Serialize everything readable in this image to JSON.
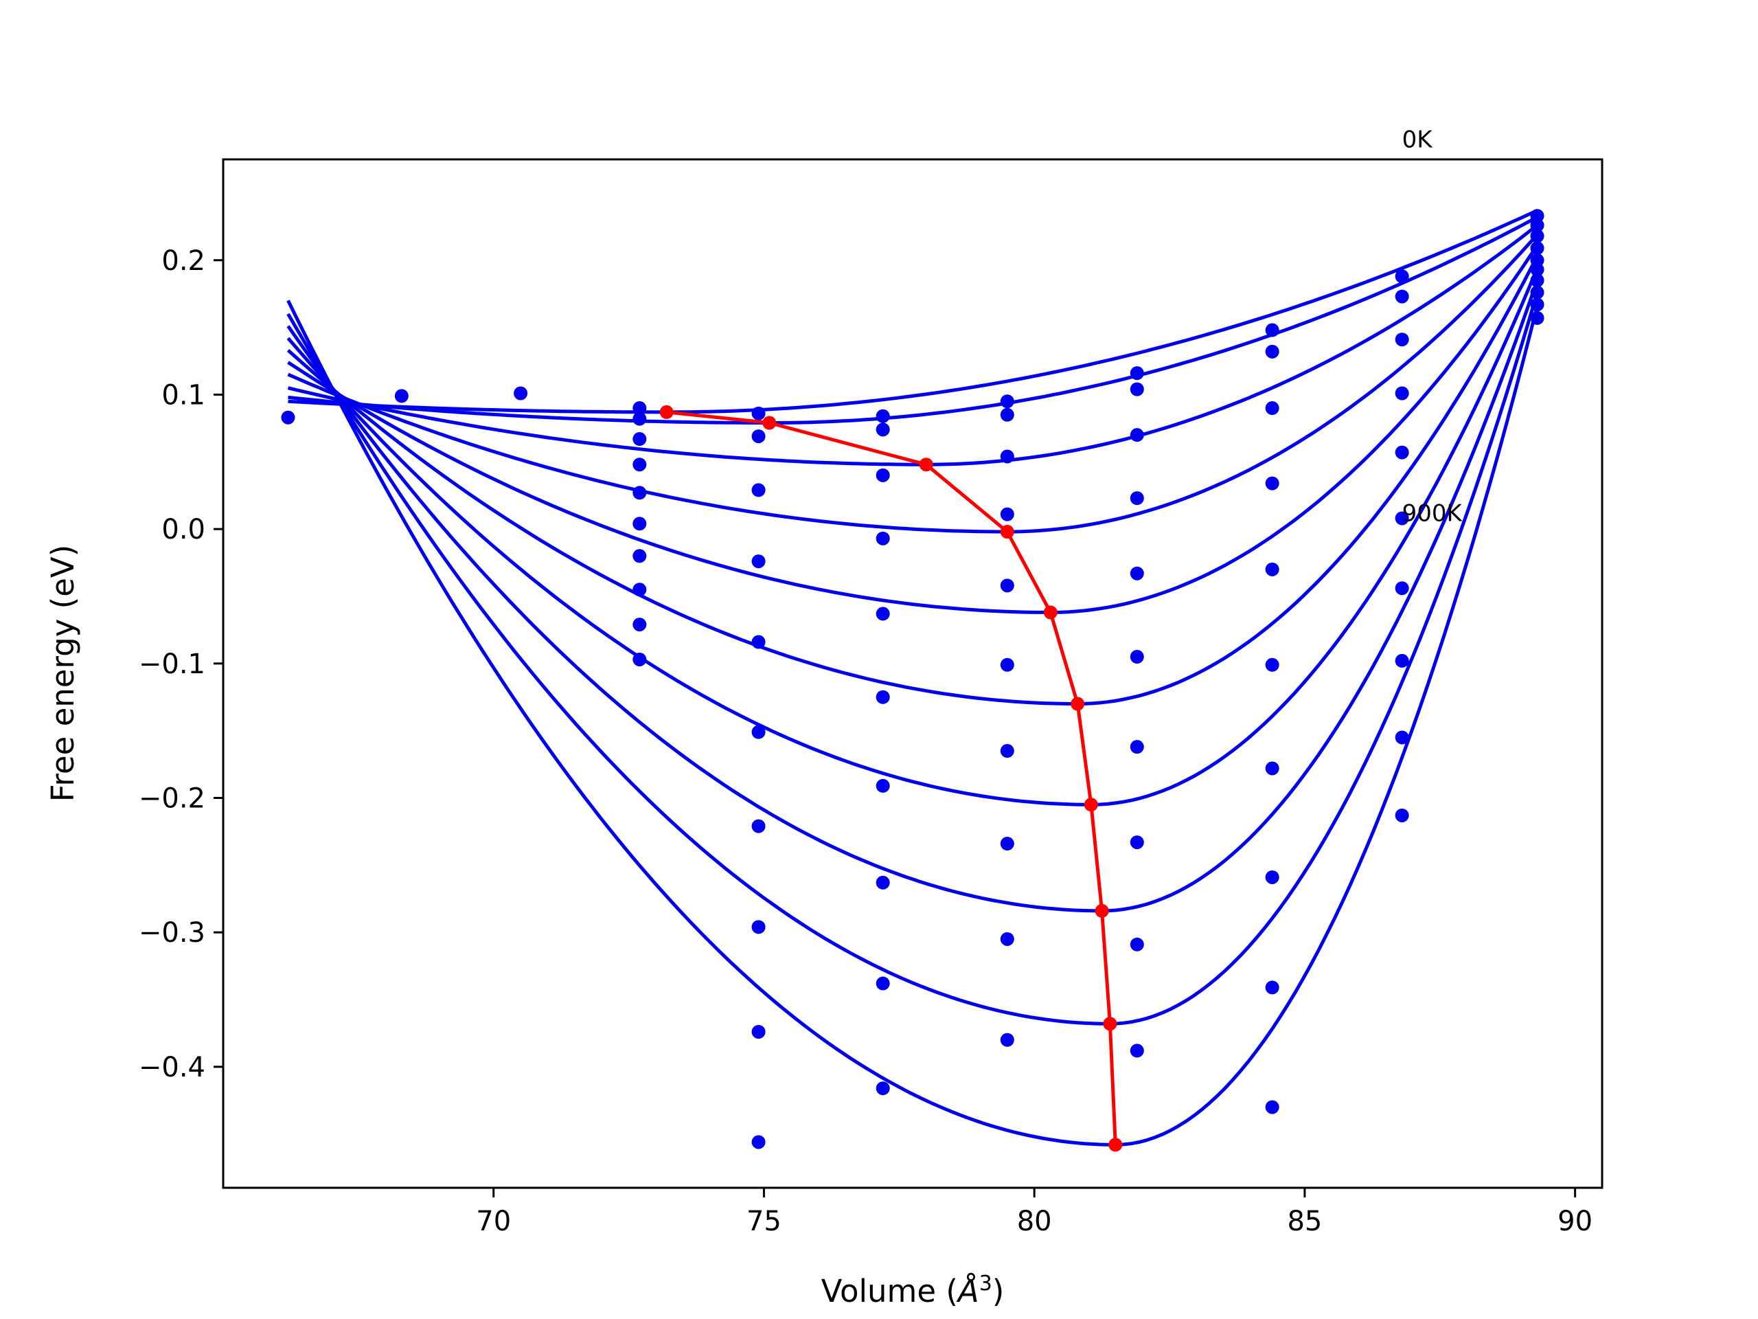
{
  "chart_data": {
    "type": "line",
    "title": "",
    "xlabel": "Volume (",
    "xlabel_unit": "Å",
    "xlabel_sup": "3",
    "xlabel_close": ")",
    "ylabel": "Free energy (eV)",
    "xlim": [
      65.0,
      90.5
    ],
    "ylim": [
      -0.49,
      0.275
    ],
    "xticks": [
      70,
      75,
      80,
      85,
      90
    ],
    "xtick_labels": [
      "70",
      "75",
      "80",
      "85",
      "90"
    ],
    "yticks": [
      -0.4,
      -0.3,
      -0.2,
      -0.1,
      0.0,
      0.1,
      0.2
    ],
    "ytick_labels": [
      "−0.4",
      "−0.3",
      "−0.2",
      "−0.1",
      "0.0",
      "0.1",
      "0.2"
    ],
    "grid": false,
    "annotations": [
      {
        "text": "0K",
        "x": 86.8,
        "y": 0.29
      },
      {
        "text": "900K",
        "x": 86.8,
        "y": 0.012
      }
    ],
    "fit_curves": [
      {
        "v0": 73.2,
        "fmin": 0.087,
        "left": 0.095,
        "right": 0.237
      },
      {
        "v0": 75.1,
        "fmin": 0.079,
        "left": 0.098,
        "right": 0.232
      },
      {
        "v0": 78.0,
        "fmin": 0.048,
        "left": 0.105,
        "right": 0.226
      },
      {
        "v0": 79.5,
        "fmin": -0.002,
        "left": 0.115,
        "right": 0.219
      },
      {
        "v0": 80.3,
        "fmin": -0.062,
        "left": 0.124,
        "right": 0.211
      },
      {
        "v0": 80.8,
        "fmin": -0.13,
        "left": 0.133,
        "right": 0.203
      },
      {
        "v0": 81.05,
        "fmin": -0.205,
        "left": 0.142,
        "right": 0.194
      },
      {
        "v0": 81.25,
        "fmin": -0.284,
        "left": 0.151,
        "right": 0.185
      },
      {
        "v0": 81.4,
        "fmin": -0.368,
        "left": 0.16,
        "right": 0.176
      },
      {
        "v0": 81.5,
        "fmin": -0.458,
        "left": 0.17,
        "right": 0.166
      }
    ],
    "fit_x_range": [
      66.2,
      89.3
    ],
    "sample_points": [
      {
        "x": 66.2,
        "y": 0.083
      },
      {
        "x": 68.3,
        "y": 0.099
      },
      {
        "x": 70.5,
        "y": 0.101
      },
      {
        "x": 72.7,
        "y": 0.09
      },
      {
        "x": 72.7,
        "y": 0.082
      },
      {
        "x": 72.7,
        "y": 0.067
      },
      {
        "x": 72.7,
        "y": 0.048
      },
      {
        "x": 72.7,
        "y": 0.027
      },
      {
        "x": 72.7,
        "y": 0.004
      },
      {
        "x": 72.7,
        "y": -0.02
      },
      {
        "x": 72.7,
        "y": -0.045
      },
      {
        "x": 72.7,
        "y": -0.071
      },
      {
        "x": 72.7,
        "y": -0.097
      },
      {
        "x": 74.9,
        "y": 0.086
      },
      {
        "x": 74.9,
        "y": 0.069
      },
      {
        "x": 74.9,
        "y": 0.029
      },
      {
        "x": 74.9,
        "y": -0.024
      },
      {
        "x": 74.9,
        "y": -0.084
      },
      {
        "x": 74.9,
        "y": -0.151
      },
      {
        "x": 74.9,
        "y": -0.221
      },
      {
        "x": 74.9,
        "y": -0.296
      },
      {
        "x": 74.9,
        "y": -0.374
      },
      {
        "x": 74.9,
        "y": -0.456
      },
      {
        "x": 77.2,
        "y": 0.084
      },
      {
        "x": 77.2,
        "y": 0.074
      },
      {
        "x": 77.2,
        "y": 0.04
      },
      {
        "x": 77.2,
        "y": -0.007
      },
      {
        "x": 77.2,
        "y": -0.063
      },
      {
        "x": 77.2,
        "y": -0.125
      },
      {
        "x": 77.2,
        "y": -0.191
      },
      {
        "x": 77.2,
        "y": -0.263
      },
      {
        "x": 77.2,
        "y": -0.338
      },
      {
        "x": 77.2,
        "y": -0.416
      },
      {
        "x": 79.5,
        "y": 0.095
      },
      {
        "x": 79.5,
        "y": 0.085
      },
      {
        "x": 79.5,
        "y": 0.054
      },
      {
        "x": 79.5,
        "y": 0.011
      },
      {
        "x": 79.5,
        "y": -0.042
      },
      {
        "x": 79.5,
        "y": -0.101
      },
      {
        "x": 79.5,
        "y": -0.165
      },
      {
        "x": 79.5,
        "y": -0.234
      },
      {
        "x": 79.5,
        "y": -0.305
      },
      {
        "x": 79.5,
        "y": -0.38
      },
      {
        "x": 81.9,
        "y": 0.116
      },
      {
        "x": 81.9,
        "y": 0.104
      },
      {
        "x": 81.9,
        "y": 0.07
      },
      {
        "x": 81.9,
        "y": 0.023
      },
      {
        "x": 81.9,
        "y": -0.033
      },
      {
        "x": 81.9,
        "y": -0.095
      },
      {
        "x": 81.9,
        "y": -0.162
      },
      {
        "x": 81.9,
        "y": -0.233
      },
      {
        "x": 81.9,
        "y": -0.309
      },
      {
        "x": 81.9,
        "y": -0.388
      },
      {
        "x": 84.4,
        "y": 0.148
      },
      {
        "x": 84.4,
        "y": 0.132
      },
      {
        "x": 84.4,
        "y": 0.09
      },
      {
        "x": 84.4,
        "y": 0.034
      },
      {
        "x": 84.4,
        "y": -0.03
      },
      {
        "x": 84.4,
        "y": -0.101
      },
      {
        "x": 84.4,
        "y": -0.178
      },
      {
        "x": 84.4,
        "y": -0.259
      },
      {
        "x": 84.4,
        "y": -0.341
      },
      {
        "x": 84.4,
        "y": -0.43
      },
      {
        "x": 86.8,
        "y": 0.188
      },
      {
        "x": 86.8,
        "y": 0.173
      },
      {
        "x": 86.8,
        "y": 0.141
      },
      {
        "x": 86.8,
        "y": 0.101
      },
      {
        "x": 86.8,
        "y": 0.057
      },
      {
        "x": 86.8,
        "y": 0.008
      },
      {
        "x": 86.8,
        "y": -0.044
      },
      {
        "x": 86.8,
        "y": -0.098
      },
      {
        "x": 86.8,
        "y": -0.155
      },
      {
        "x": 86.8,
        "y": -0.213
      },
      {
        "x": 89.3,
        "y": 0.233
      },
      {
        "x": 89.3,
        "y": 0.226
      },
      {
        "x": 89.3,
        "y": 0.218
      },
      {
        "x": 89.3,
        "y": 0.209
      },
      {
        "x": 89.3,
        "y": 0.2
      },
      {
        "x": 89.3,
        "y": 0.193
      },
      {
        "x": 89.3,
        "y": 0.185
      },
      {
        "x": 89.3,
        "y": 0.176
      },
      {
        "x": 89.3,
        "y": 0.167
      },
      {
        "x": 89.3,
        "y": 0.157
      }
    ],
    "minima_path": [
      {
        "x": 73.2,
        "y": 0.087
      },
      {
        "x": 75.1,
        "y": 0.079
      },
      {
        "x": 78.0,
        "y": 0.048
      },
      {
        "x": 79.5,
        "y": -0.002
      },
      {
        "x": 80.3,
        "y": -0.062
      },
      {
        "x": 80.8,
        "y": -0.13
      },
      {
        "x": 81.05,
        "y": -0.205
      },
      {
        "x": 81.25,
        "y": -0.284
      },
      {
        "x": 81.4,
        "y": -0.368
      },
      {
        "x": 81.5,
        "y": -0.458
      }
    ],
    "colors": {
      "fit_curves": "#0000ee",
      "sample_points": "#0000ee",
      "minima_path": "#ff0000",
      "axes": "#000000"
    }
  }
}
